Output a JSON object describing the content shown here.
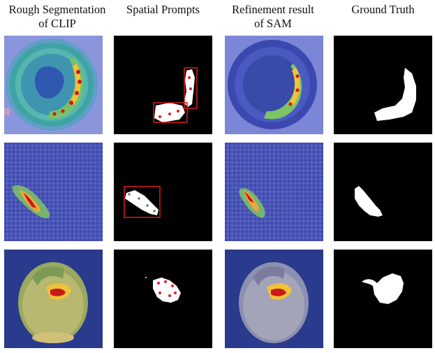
{
  "figure": {
    "headers": [
      {
        "line1": "Rough Segmentation",
        "line2": "of CLIP"
      },
      {
        "line1": "Spatial Prompts",
        "line2": ""
      },
      {
        "line1": "Refinement result",
        "line2": "of SAM"
      },
      {
        "line1": "Ground Truth",
        "line2": ""
      }
    ],
    "rows": [
      {
        "name": "row-1-bottle-cap",
        "defect": "crescent-shaped region"
      },
      {
        "name": "row-2-textured-surface",
        "defect": "elongated blob"
      },
      {
        "name": "row-3-hazelnut",
        "defect": "small crack region"
      }
    ],
    "colors": {
      "heatmap_cold": "#3a3fb0",
      "heatmap_warm": "#ffd23a",
      "heatmap_hot": "#d01818",
      "prompt_box": "#cc1b1b",
      "prompt_point": "#e02020",
      "mask_background": "#000000",
      "mask_foreground": "#ffffff"
    }
  }
}
